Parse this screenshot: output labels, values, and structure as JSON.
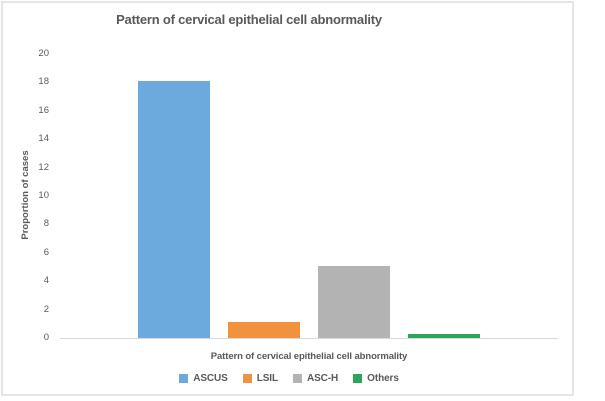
{
  "chart_data": {
    "type": "bar",
    "title": "Pattern of cervical epithelial cell abnormality",
    "xlabel": "Pattern of cervical epithelial cell abnormality",
    "ylabel": "Proportion of cases",
    "categories": [
      "ASCUS",
      "LSIL",
      "ASC-H",
      "Others"
    ],
    "values": [
      18.1,
      1.1,
      5.1,
      0.3
    ],
    "colors": [
      "#6CA9DC",
      "#F0923E",
      "#B3B3B3",
      "#2BA45C"
    ],
    "ylim": [
      0,
      20
    ],
    "ytick_step": 2,
    "yticks": [
      0,
      2,
      4,
      6,
      8,
      10,
      12,
      14,
      16,
      18,
      20
    ],
    "grid": false,
    "legend_position": "bottom",
    "legend": [
      "ASCUS",
      "LSIL",
      "ASC-H",
      "Others"
    ],
    "text_color": "#595959",
    "axis_line_color": "#D9D9D9",
    "frame_border_color": "#E5E5E5"
  }
}
